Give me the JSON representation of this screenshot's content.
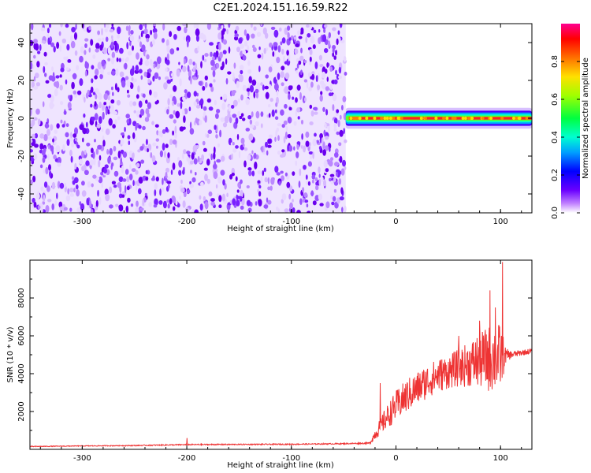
{
  "title": "C2E1.2024.151.16.59.R22",
  "chart_data": [
    {
      "type": "heatmap",
      "xlabel": "Height of straight line (km)",
      "ylabel": "Frequency (Hz)",
      "xlim": [
        -350,
        130
      ],
      "ylim": [
        -50,
        50
      ],
      "xticks": [
        -300,
        -200,
        -100,
        0,
        100
      ],
      "yticks": [
        -40,
        -20,
        0,
        20,
        40
      ],
      "noise_region_x": [
        -350,
        -48
      ],
      "signal_band_x": [
        -48,
        130
      ],
      "signal_frequency_hz": 0,
      "signal_halfwidth_hz": [
        4,
        2
      ],
      "colorbar": {
        "label": "Normalized spectral amplitude",
        "range": [
          0,
          1
        ],
        "ticks": [
          0.0,
          0.2,
          0.4,
          0.6,
          0.8
        ],
        "colors": [
          "#ffffff",
          "#c080ff",
          "#6a00ff",
          "#0000ff",
          "#00e0ff",
          "#00ff60",
          "#80ff00",
          "#ffff00",
          "#ff8000",
          "#ff0000",
          "#ff0090"
        ]
      }
    },
    {
      "type": "line",
      "xlabel": "Height of straight line (km)",
      "ylabel": "SNR (10 * v/v)",
      "xlim": [
        -350,
        130
      ],
      "ylim": [
        0,
        10000
      ],
      "xticks": [
        -300,
        -200,
        -100,
        0,
        100
      ],
      "yticks": [
        2000,
        4000,
        6000,
        8000
      ],
      "color": "#ee3333",
      "series": [
        {
          "x": [
            -350,
            -300,
            -250,
            -200,
            -150,
            -100,
            -50,
            -25,
            -20,
            -10,
            0,
            10,
            20,
            30,
            40,
            50,
            60,
            70,
            80,
            90,
            100,
            105,
            110,
            120,
            130
          ],
          "y": [
            150,
            180,
            200,
            250,
            260,
            270,
            300,
            330,
            800,
            1600,
            2300,
            2800,
            3200,
            3600,
            3900,
            4100,
            4300,
            4500,
            4700,
            4800,
            4900,
            4950,
            5000,
            5100,
            5200
          ],
          "noise": [
            20,
            20,
            25,
            30,
            30,
            30,
            30,
            40,
            300,
            600,
            800,
            900,
            900,
            900,
            900,
            900,
            1000,
            1200,
            1500,
            1800,
            1800,
            400,
            200,
            150,
            150
          ],
          "spikes": [
            [
              -200,
              600
            ],
            [
              -15,
              3500
            ],
            [
              90,
              8400
            ],
            [
              95,
              7500
            ],
            [
              102,
              9900
            ],
            [
              80,
              6800
            ],
            [
              60,
              6000
            ]
          ]
        }
      ]
    }
  ]
}
